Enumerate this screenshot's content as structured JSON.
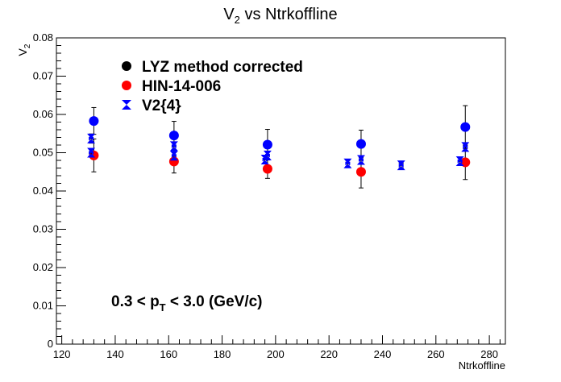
{
  "chart_data": {
    "type": "scatter",
    "title": "V",
    "title_sub": "2",
    "title_rest": " vs Ntrkoffline",
    "xlabel": "Ntrkoffline",
    "ylabel": "V",
    "ylabel_sub": "2",
    "xlim": [
      118,
      286
    ],
    "ylim": [
      0,
      0.08
    ],
    "xticks": [
      120,
      140,
      160,
      180,
      200,
      220,
      240,
      260,
      280
    ],
    "yticks": [
      0,
      0.01,
      0.02,
      0.03,
      0.04,
      0.05,
      0.06,
      0.07,
      0.08
    ],
    "xtick_labels": [
      "120",
      "140",
      "160",
      "180",
      "200",
      "220",
      "240",
      "260",
      "280"
    ],
    "ytick_labels": [
      "0",
      "0.01",
      "0.02",
      "0.03",
      "0.04",
      "0.05",
      "0.06",
      "0.07",
      "0.08"
    ],
    "grid": false,
    "legend_position": "top-left",
    "annotation": {
      "main": "0.3 < p",
      "sub": "T",
      "rest": " < 3.0 (GeV/c)"
    },
    "series": [
      {
        "name": "LYZ method corrected",
        "marker": "circle",
        "color": "#0000ff",
        "legend_color": "#000000",
        "points": [
          {
            "x": 132,
            "y": 0.0583,
            "err": 0.0035
          },
          {
            "x": 162,
            "y": 0.0545,
            "err": 0.0037
          },
          {
            "x": 197,
            "y": 0.0521,
            "err": 0.004
          },
          {
            "x": 232,
            "y": 0.0523,
            "err": 0.0036
          },
          {
            "x": 271,
            "y": 0.0567,
            "err": 0.0056
          }
        ]
      },
      {
        "name": "HIN-14-006",
        "marker": "circle",
        "color": "#ff0000",
        "points": [
          {
            "x": 132,
            "y": 0.0493,
            "err": 0.0043
          },
          {
            "x": 162,
            "y": 0.0477,
            "err": 0.003
          },
          {
            "x": 197,
            "y": 0.0458,
            "err": 0.0025
          },
          {
            "x": 232,
            "y": 0.045,
            "err": 0.0042
          },
          {
            "x": 271,
            "y": 0.0475,
            "err": 0.0045
          }
        ]
      },
      {
        "name": "V2{4}",
        "marker": "star",
        "color": "#0000ff",
        "points": [
          {
            "x": 131,
            "y": 0.0537,
            "err": 0.0012
          },
          {
            "x": 131,
            "y": 0.05,
            "err": 0.001
          },
          {
            "x": 162,
            "y": 0.0517,
            "err": 0.001
          },
          {
            "x": 162,
            "y": 0.0492,
            "err": 0.001
          },
          {
            "x": 197,
            "y": 0.0493,
            "err": 0.001
          },
          {
            "x": 196,
            "y": 0.0482,
            "err": 0.001
          },
          {
            "x": 227,
            "y": 0.0472,
            "err": 0.0008
          },
          {
            "x": 232,
            "y": 0.0481,
            "err": 0.001
          },
          {
            "x": 247,
            "y": 0.0467,
            "err": 0.0006
          },
          {
            "x": 271,
            "y": 0.0515,
            "err": 0.001
          },
          {
            "x": 269,
            "y": 0.0478,
            "err": 0.001
          }
        ]
      }
    ]
  }
}
